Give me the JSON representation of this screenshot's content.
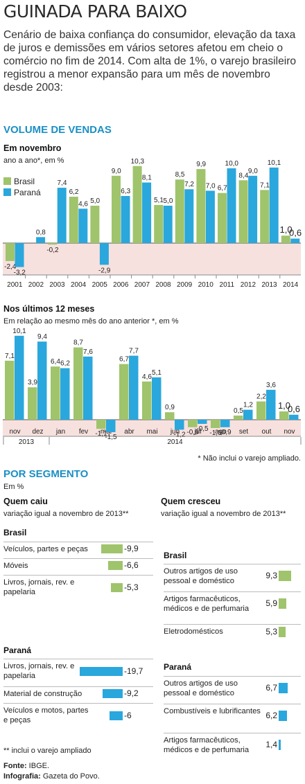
{
  "header": {
    "title": "GUINADA PARA BAIXO",
    "intro": "Cenário de baixa confiança do consumidor, elevação da taxa de juros e demissões em vários setores afetou em cheio o comércio no fim de 2014. Com alta de 1%, o varejo brasileiro registrou a menor expansão para um mês de novembro desde 2003:"
  },
  "colors": {
    "brasil": "#9fc46c",
    "parana": "#2aa7dc",
    "negative_band": "#f7e1de",
    "section": "#1a8fc4"
  },
  "volume": {
    "section_title": "VOLUME DE VENDAS",
    "chart1_title": "Em novembro",
    "chart1_subtitle": "ano a ano*, em %",
    "chart2_title": "Nos últimos 12 meses",
    "chart2_subtitle": "Em relação ao mesmo mês do ano anterior *, em %",
    "footnote": "* Não inclui o varejo ampliado."
  },
  "chart_data": [
    {
      "type": "bar",
      "title": "Em novembro",
      "subtitle": "ano a ano*, em %",
      "categories": [
        "2001",
        "2002",
        "2003",
        "2004",
        "2005",
        "2006",
        "2007",
        "2008",
        "2009",
        "2010",
        "2011",
        "2012",
        "2013",
        "2014"
      ],
      "series": [
        {
          "name": "Brasil",
          "values": [
            -2.4,
            null,
            -0.2,
            6.2,
            5.0,
            9.0,
            10.3,
            5.1,
            8.5,
            9.9,
            6.7,
            8.4,
            7.1,
            1.0
          ],
          "labels": [
            "-2,4",
            "",
            "-0,2",
            "6,2",
            "5,0",
            "9,0",
            "10,3",
            "5,1",
            "8,5",
            "9,9",
            "6,7",
            "8,4",
            "7,1",
            "1,0"
          ]
        },
        {
          "name": "Paraná",
          "values": [
            -3.2,
            0.8,
            7.4,
            4.6,
            -2.9,
            6.3,
            8.1,
            5.0,
            7.2,
            7.0,
            10.0,
            9.0,
            10.1,
            0.6
          ],
          "labels": [
            "-3,2",
            "0,8",
            "7,4",
            "4,6",
            "-2,9",
            "6,3",
            "8,1",
            "5,0",
            "7,2",
            "7,0",
            "10,0",
            "9,0",
            "10,1",
            "0,6"
          ]
        }
      ],
      "legend": "top-left"
    },
    {
      "type": "bar",
      "title": "Nos últimos 12 meses",
      "subtitle": "Em relação ao mesmo mês do ano anterior *, em %",
      "categories": [
        "nov",
        "dez",
        "jan",
        "fev",
        "mar",
        "abr",
        "mai",
        "jun",
        "jul",
        "ago",
        "set",
        "out",
        "nov"
      ],
      "year_groups": [
        {
          "label": "2013",
          "from": 0,
          "to": 1
        },
        {
          "label": "2014",
          "from": 2,
          "to": 12
        }
      ],
      "series": [
        {
          "name": "Brasil",
          "values": [
            7.1,
            3.9,
            6.4,
            8.7,
            -1.1,
            6.7,
            4.6,
            0.9,
            -0.9,
            -1.0,
            0.5,
            2.2,
            1.0
          ],
          "labels": [
            "7,1",
            "3,9",
            "6,4",
            "8,7",
            "-1,1",
            "6,7",
            "4,6",
            "0,9",
            "-0,9",
            "-1,0",
            "0,5",
            "2,2",
            "1,0"
          ]
        },
        {
          "name": "Paraná",
          "values": [
            10.1,
            9.4,
            6.2,
            7.6,
            -1.5,
            7.7,
            5.1,
            -1.2,
            -0.5,
            -0.9,
            1.2,
            3.6,
            0.6
          ],
          "labels": [
            "10,1",
            "9,4",
            "6,2",
            "7,6",
            "-1,5",
            "7,7",
            "5,1",
            "-1,2",
            "-0,5",
            "-0,9",
            "1,2",
            "3,6",
            "0,6"
          ]
        }
      ]
    },
    {
      "type": "bar",
      "title": "Quem caiu",
      "subtitle": "variação igual a novembro de 2013**",
      "groups": [
        {
          "name": "Brasil",
          "items": [
            {
              "label": "Veículos, partes e peças",
              "value": -9.9,
              "text": "-9,9"
            },
            {
              "label": "Móveis",
              "value": -6.6,
              "text": "-6,6"
            },
            {
              "label": "Livros, jornais, rev. e papelaria",
              "value": -5.3,
              "text": "-5,3"
            }
          ]
        },
        {
          "name": "Paraná",
          "items": [
            {
              "label": "Livros, jornais, rev. e papelaria",
              "value": -19.7,
              "text": "-19,7"
            },
            {
              "label": "Material de construção",
              "value": -9.2,
              "text": "-9,2"
            },
            {
              "label": "Veículos e motos, partes e peças",
              "value": -6,
              "text": "-6"
            }
          ]
        }
      ]
    },
    {
      "type": "bar",
      "title": "Quem cresceu",
      "subtitle": "variação igual a novembro de 2013**",
      "groups": [
        {
          "name": "Brasil",
          "items": [
            {
              "label": "Outros artigos de uso pessoal e doméstico",
              "value": 9.3,
              "text": "9,3"
            },
            {
              "label": "Artigos farmacêuticos, médicos e de perfumaria",
              "value": 5.9,
              "text": "5,9"
            },
            {
              "label": "Eletrodomésticos",
              "value": 5.3,
              "text": "5,3"
            }
          ]
        },
        {
          "name": "Paraná",
          "items": [
            {
              "label": "Outros artigos de uso pessoal e doméstico",
              "value": 6.7,
              "text": "6,7"
            },
            {
              "label": "Combustíveis e lubrificantes",
              "value": 6.2,
              "text": "6,2"
            },
            {
              "label": "Artigos farmacêuticos, médicos e de perfumaria",
              "value": 1.4,
              "text": "1,4"
            }
          ]
        }
      ]
    }
  ],
  "segments": {
    "section_title": "POR SEGMENTO",
    "unit": "Em %",
    "footnote": "** inclui o varejo ampliado"
  },
  "credits": {
    "source_label": "Fonte:",
    "source": "IBGE.",
    "infographic_label": "Infografia:",
    "infographic": "Gazeta do Povo."
  }
}
